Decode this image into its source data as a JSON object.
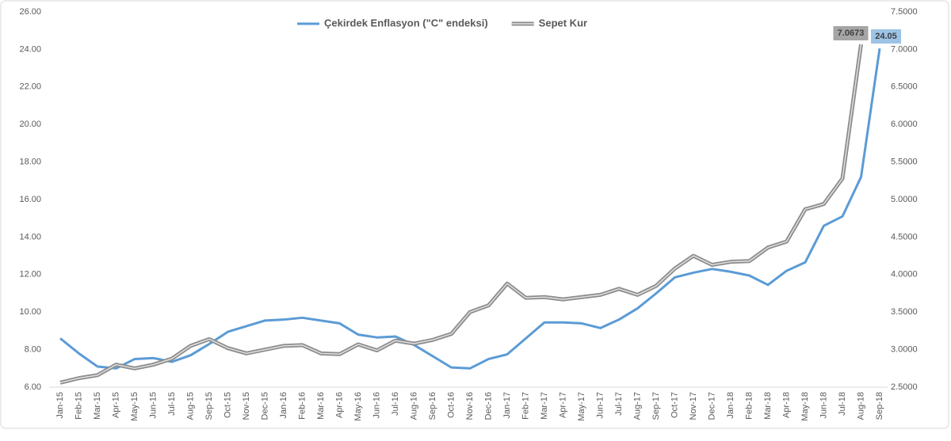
{
  "chart_data": {
    "type": "line",
    "categories": [
      "Jan-15",
      "Feb-15",
      "Mar-15",
      "Apr-15",
      "May-15",
      "Jun-15",
      "Jul-15",
      "Aug-15",
      "Sep-15",
      "Oct-15",
      "Nov-15",
      "Dec-15",
      "Jan-16",
      "Feb-16",
      "Mar-16",
      "Apr-16",
      "May-16",
      "Jun-16",
      "Jul-16",
      "Aug-16",
      "Sep-16",
      "Oct-16",
      "Nov-16",
      "Dec-16",
      "Jan-17",
      "Feb-17",
      "Mar-17",
      "Apr-17",
      "May-17",
      "Jun-17",
      "Jul-17",
      "Aug-17",
      "Sep-17",
      "Oct-17",
      "Nov-17",
      "Dec-17",
      "Jan-18",
      "Feb-18",
      "Mar-18",
      "Apr-18",
      "May-18",
      "Jun-18",
      "Jul-18",
      "Aug-18",
      "Sep-18"
    ],
    "series": [
      {
        "name": "Çekirdek Enflasyon (\"C\" endeksi)",
        "color": "#5b9bd5",
        "values": [
          8.6,
          7.8,
          7.1,
          7.0,
          7.5,
          7.55,
          7.35,
          7.7,
          8.3,
          8.95,
          9.25,
          9.55,
          9.6,
          9.7,
          9.55,
          9.4,
          8.8,
          8.65,
          8.7,
          8.25,
          7.65,
          7.05,
          7.0,
          7.5,
          7.75,
          8.6,
          9.45,
          9.45,
          9.4,
          9.15,
          9.6,
          10.2,
          11.0,
          11.85,
          12.1,
          12.3,
          12.15,
          11.95,
          11.45,
          12.2,
          12.65,
          14.6,
          15.1,
          17.2,
          24.05
        ]
      },
      {
        "name": "Sepet Kur",
        "color": "#a5a5a5",
        "axis": "y2",
        "values": [
          2.56,
          2.62,
          2.66,
          2.8,
          2.75,
          2.8,
          2.88,
          3.05,
          3.14,
          3.02,
          2.95,
          3.0,
          3.05,
          3.06,
          2.95,
          2.94,
          3.07,
          2.99,
          3.12,
          3.08,
          3.13,
          3.21,
          3.5,
          3.59,
          3.88,
          3.69,
          3.7,
          3.67,
          3.7,
          3.73,
          3.81,
          3.73,
          3.85,
          4.08,
          4.25,
          4.13,
          4.17,
          4.18,
          4.36,
          4.44,
          4.87,
          4.94,
          5.28,
          7.0673,
          null
        ]
      }
    ],
    "ylim": [
      6,
      26
    ],
    "yticks": [
      {
        "value": 6,
        "label": "6.00"
      },
      {
        "value": 8,
        "label": "8.00"
      },
      {
        "value": 10,
        "label": "10.00"
      },
      {
        "value": 12,
        "label": "12.00"
      },
      {
        "value": 14,
        "label": "14.00"
      },
      {
        "value": 16,
        "label": "16.00"
      },
      {
        "value": 18,
        "label": "18.00"
      },
      {
        "value": 20,
        "label": "20.00"
      },
      {
        "value": 22,
        "label": "22.00"
      },
      {
        "value": 24,
        "label": "24.00"
      },
      {
        "value": 26,
        "label": "26.00"
      }
    ],
    "y2lim": [
      2.5,
      7.5
    ],
    "y2ticks": [
      {
        "value": 2.5,
        "label": "2.5000"
      },
      {
        "value": 3,
        "label": "3.0000"
      },
      {
        "value": 3.5,
        "label": "3.5000"
      },
      {
        "value": 4,
        "label": "4.0000"
      },
      {
        "value": 4.5,
        "label": "4.5000"
      },
      {
        "value": 5,
        "label": "5.0000"
      },
      {
        "value": 5.5,
        "label": "5.5000"
      },
      {
        "value": 6,
        "label": "6.0000"
      },
      {
        "value": 6.5,
        "label": "6.5000"
      },
      {
        "value": 7,
        "label": "7.0000"
      },
      {
        "value": 7.5,
        "label": "7.5000"
      }
    ],
    "grid": false,
    "legend": "top"
  }
}
